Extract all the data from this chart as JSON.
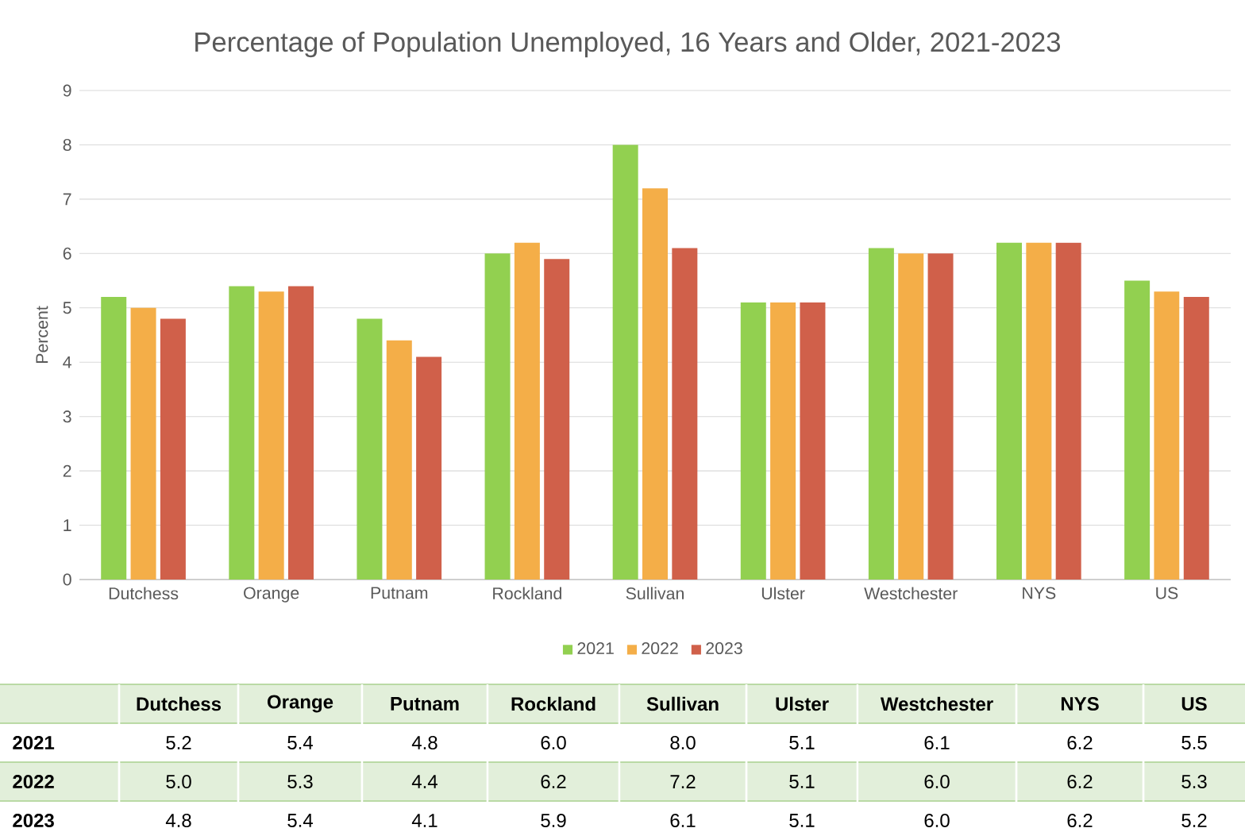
{
  "chart_data": {
    "type": "bar",
    "title": "Percentage of Population Unemployed, 16 Years and Older, 2021-2023",
    "ylabel": "Percent",
    "categories": [
      "Dutchess",
      "Orange",
      "Putnam",
      "Rockland",
      "Sullivan",
      "Ulster",
      "Westchester",
      "NYS",
      "US"
    ],
    "series": [
      {
        "name": "2021",
        "color": "#92d050",
        "values": [
          5.2,
          5.4,
          4.8,
          6.0,
          8.0,
          5.1,
          6.1,
          6.2,
          5.5
        ],
        "value_labels": [
          "5.2",
          "5.4",
          "4.8",
          "6.0",
          "8.0",
          "5.1",
          "6.1",
          "6.2",
          "5.5"
        ]
      },
      {
        "name": "2022",
        "color": "#f4ae48",
        "values": [
          5.0,
          5.3,
          4.4,
          6.2,
          7.2,
          5.1,
          6.0,
          6.2,
          5.3
        ],
        "value_labels": [
          "5.0",
          "5.3",
          "4.4",
          "6.2",
          "7.2",
          "5.1",
          "6.0",
          "6.2",
          "5.3"
        ]
      },
      {
        "name": "2023",
        "color": "#d0604a",
        "values": [
          4.8,
          5.4,
          4.1,
          5.9,
          6.1,
          5.1,
          6.0,
          6.2,
          5.2
        ],
        "value_labels": [
          "4.8",
          "5.4",
          "4.1",
          "5.9",
          "6.1",
          "5.1",
          "6.0",
          "6.2",
          "5.2"
        ]
      }
    ],
    "ylim": [
      0,
      9
    ],
    "yticks": [
      0,
      1,
      2,
      3,
      4,
      5,
      6,
      7,
      8,
      9
    ],
    "grid": "y",
    "legend": "bottom"
  }
}
